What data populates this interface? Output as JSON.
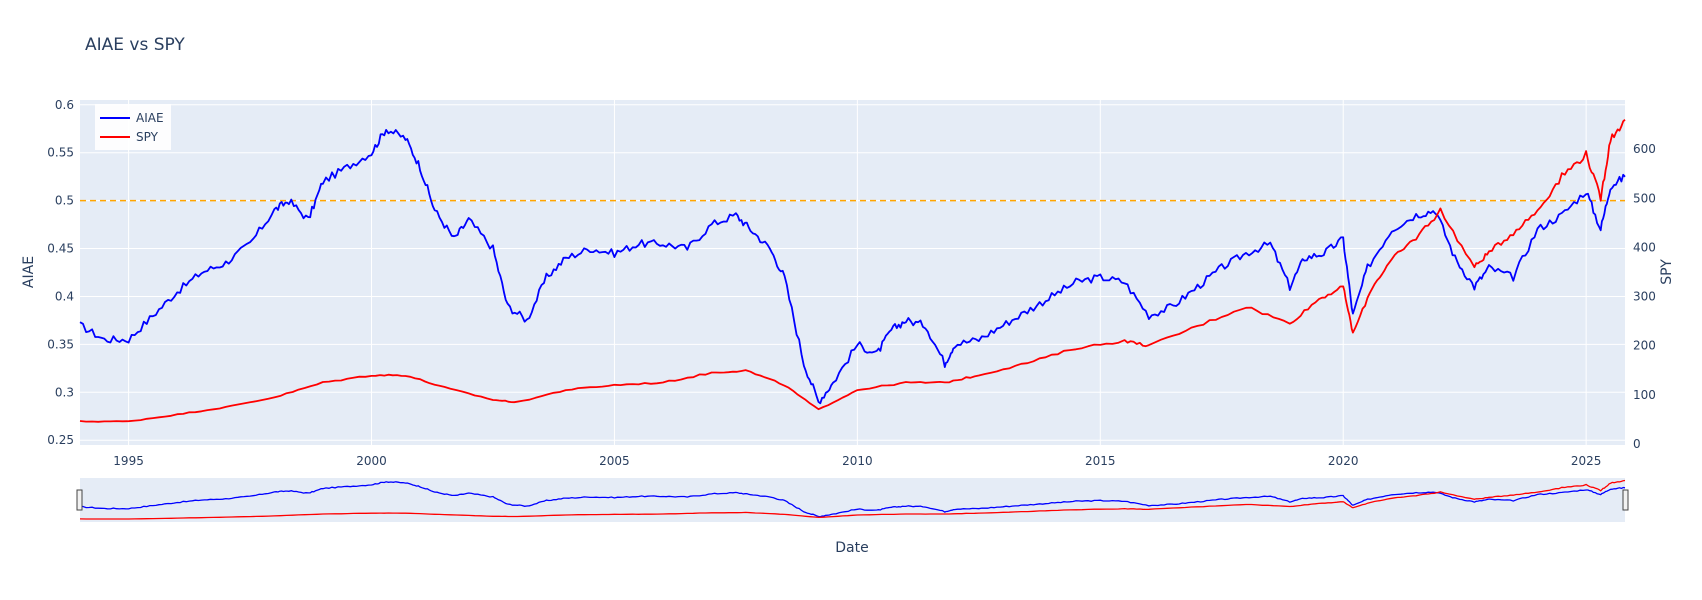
{
  "chart_data": {
    "type": "line",
    "title": "AIAE vs SPY",
    "xlabel": "Date",
    "ylabel": "AIAE",
    "y2label": "SPY",
    "xlim": [
      1994.0,
      2025.8
    ],
    "ylim": [
      0.245,
      0.605
    ],
    "y2lim": [
      -2,
      700
    ],
    "grid": true,
    "legend_position": "top-left",
    "range_slider": true,
    "x_ticks": [
      "1995",
      "2000",
      "2005",
      "2010",
      "2015",
      "2020",
      "2025"
    ],
    "x_tick_values": [
      1995,
      2000,
      2005,
      2010,
      2015,
      2020,
      2025
    ],
    "y_ticks": [
      "0.25",
      "0.3",
      "0.35",
      "0.4",
      "0.45",
      "0.5",
      "0.55",
      "0.6"
    ],
    "y_tick_values": [
      0.25,
      0.3,
      0.35,
      0.4,
      0.45,
      0.5,
      0.55,
      0.6
    ],
    "y2_ticks": [
      "0",
      "100",
      "200",
      "300",
      "400",
      "500",
      "600"
    ],
    "y2_tick_values": [
      0,
      100,
      200,
      300,
      400,
      500,
      600
    ],
    "reference_line": {
      "axis": "y",
      "value": 0.5,
      "color": "#ffa500",
      "style": "dashed"
    },
    "series": [
      {
        "name": "AIAE",
        "color": "#0000ff",
        "axis": "y",
        "x": [
          1994.0,
          1994.5,
          1995.0,
          1995.5,
          1996.0,
          1996.5,
          1997.0,
          1997.5,
          1998.0,
          1998.3,
          1998.7,
          1999.0,
          1999.5,
          2000.0,
          2000.3,
          2000.7,
          2001.0,
          2001.3,
          2001.7,
          2002.0,
          2002.5,
          2002.8,
          2003.2,
          2003.6,
          2004.0,
          2004.5,
          2005.0,
          2005.5,
          2006.0,
          2006.5,
          2007.0,
          2007.5,
          2007.8,
          2008.2,
          2008.5,
          2008.9,
          2009.2,
          2009.5,
          2010.0,
          2010.4,
          2010.7,
          2011.0,
          2011.4,
          2011.8,
          2012.0,
          2012.5,
          2013.0,
          2013.5,
          2014.0,
          2014.5,
          2015.0,
          2015.5,
          2016.0,
          2016.5,
          2017.0,
          2017.5,
          2018.0,
          2018.5,
          2018.9,
          2019.2,
          2019.6,
          2020.0,
          2020.2,
          2020.5,
          2021.0,
          2021.5,
          2021.9,
          2022.3,
          2022.7,
          2023.0,
          2023.5,
          2024.0,
          2024.5,
          2025.0,
          2025.3,
          2025.5,
          2025.8
        ],
        "values": [
          0.37,
          0.355,
          0.355,
          0.38,
          0.405,
          0.425,
          0.435,
          0.455,
          0.49,
          0.5,
          0.48,
          0.52,
          0.535,
          0.55,
          0.575,
          0.565,
          0.535,
          0.49,
          0.46,
          0.48,
          0.45,
          0.39,
          0.375,
          0.42,
          0.44,
          0.45,
          0.445,
          0.455,
          0.455,
          0.45,
          0.475,
          0.485,
          0.47,
          0.45,
          0.42,
          0.33,
          0.29,
          0.31,
          0.35,
          0.34,
          0.365,
          0.375,
          0.37,
          0.33,
          0.35,
          0.355,
          0.37,
          0.385,
          0.4,
          0.415,
          0.42,
          0.415,
          0.38,
          0.39,
          0.41,
          0.43,
          0.445,
          0.455,
          0.41,
          0.44,
          0.445,
          0.46,
          0.38,
          0.43,
          0.47,
          0.485,
          0.49,
          0.44,
          0.41,
          0.43,
          0.42,
          0.47,
          0.485,
          0.51,
          0.47,
          0.515,
          0.525
        ]
      },
      {
        "name": "SPY",
        "color": "#ff0000",
        "axis": "y2",
        "x": [
          1994.0,
          1995.0,
          1996.0,
          1997.0,
          1998.0,
          1999.0,
          2000.0,
          2000.7,
          2001.5,
          2002.5,
          2003.0,
          2004.0,
          2005.0,
          2006.0,
          2007.0,
          2007.7,
          2008.5,
          2009.2,
          2010.0,
          2011.0,
          2011.8,
          2012.5,
          2013.5,
          2014.5,
          2015.5,
          2016.0,
          2017.0,
          2018.0,
          2018.9,
          2019.5,
          2020.0,
          2020.2,
          2020.6,
          2021.0,
          2021.5,
          2022.0,
          2022.7,
          2023.0,
          2023.5,
          2024.0,
          2024.5,
          2025.0,
          2025.3,
          2025.5,
          2025.8
        ],
        "values": [
          46,
          46,
          60,
          75,
          95,
          125,
          140,
          140,
          115,
          90,
          85,
          110,
          120,
          125,
          145,
          150,
          120,
          70,
          110,
          125,
          125,
          140,
          165,
          195,
          210,
          200,
          240,
          280,
          245,
          295,
          320,
          225,
          320,
          375,
          420,
          475,
          360,
          390,
          430,
          475,
          545,
          590,
          500,
          620,
          660
        ]
      }
    ]
  }
}
